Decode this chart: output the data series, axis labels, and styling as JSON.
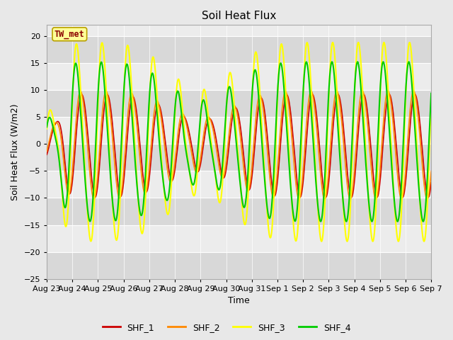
{
  "title": "Soil Heat Flux",
  "ylabel": "Soil Heat Flux (W/m2)",
  "xlabel": "Time",
  "ylim": [
    -25,
    22
  ],
  "yticks": [
    -25,
    -20,
    -15,
    -10,
    -5,
    0,
    5,
    10,
    15,
    20
  ],
  "bg_color": "#e8e8e8",
  "plot_bg_color": "#e8e8e8",
  "band_color_dark": "#d8d8d8",
  "band_color_light": "#ececec",
  "annotation_text": "TW_met",
  "annotation_color": "#8b0000",
  "annotation_bg": "#ffff99",
  "annotation_edge": "#b8a000",
  "line_colors": {
    "SHF_1": "#cc0000",
    "SHF_2": "#ff8800",
    "SHF_3": "#ffff00",
    "SHF_4": "#00cc00"
  },
  "legend_labels": [
    "SHF_1",
    "SHF_2",
    "SHF_3",
    "SHF_4"
  ],
  "xtick_labels": [
    "Aug 23",
    "Aug 24",
    "Aug 25",
    "Aug 26",
    "Aug 27",
    "Aug 28",
    "Aug 29",
    "Aug 30",
    "Aug 31",
    "Sep 1",
    "Sep 2",
    "Sep 3",
    "Sep 4",
    "Sep 5",
    "Sep 6",
    "Sep 7"
  ],
  "num_days": 16
}
